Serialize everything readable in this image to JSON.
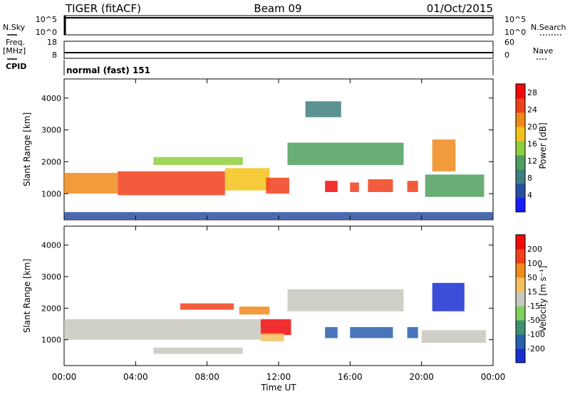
{
  "header": {
    "station": "TIGER (fitACF)",
    "beam": "Beam 09",
    "date": "01/Oct/2015"
  },
  "top_panels": {
    "nsky_label": "N.Sky",
    "nsearch_label": "N.Search",
    "sky_ticks": [
      "10^5",
      "10^0"
    ],
    "freq_label_1": "Freq.",
    "freq_label_2": "[MHz]",
    "freq_ticks": [
      "18",
      "8"
    ],
    "nave_label": "Nave",
    "nave_ticks": [
      "60",
      "0"
    ],
    "cpid_label": "CPID",
    "cpid_text": "normal (fast) 151"
  },
  "chart_data": [
    {
      "type": "heatmap",
      "title": "",
      "xlabel": "Time UT",
      "ylabel": "Slant Range [km]",
      "xlim": [
        0,
        24
      ],
      "ylim": [
        180,
        4600
      ],
      "x_ticks": [
        "00:00",
        "04:00",
        "08:00",
        "12:00",
        "16:00",
        "20:00",
        "00:00"
      ],
      "y_ticks": [
        "1000",
        "2000",
        "3000",
        "4000"
      ],
      "colorbar": {
        "label": "Power [dB]",
        "ticks": [
          "4",
          "8",
          "12",
          "16",
          "20",
          "24",
          "28"
        ],
        "range": [
          0,
          30
        ],
        "colors": [
          "#1a1aff",
          "#2a4fa0",
          "#3f7f7f",
          "#4f9f5f",
          "#8fcf3f",
          "#f5c21a",
          "#f08a1a",
          "#f0401a",
          "#f00a0a"
        ]
      },
      "regions": [
        {
          "t0": 0.0,
          "t1": 3.0,
          "r0": 1000,
          "r1": 1650,
          "value": 22
        },
        {
          "t0": 3.0,
          "t1": 9.0,
          "r0": 950,
          "r1": 1700,
          "value": 25
        },
        {
          "t0": 9.0,
          "t1": 11.5,
          "r0": 1100,
          "r1": 1800,
          "value": 18
        },
        {
          "t0": 11.3,
          "t1": 12.6,
          "r0": 1000,
          "r1": 1500,
          "value": 26
        },
        {
          "t0": 5.0,
          "t1": 10.0,
          "r0": 1900,
          "r1": 2150,
          "value": 16
        },
        {
          "t0": 14.6,
          "t1": 15.3,
          "r0": 1050,
          "r1": 1400,
          "value": 27
        },
        {
          "t0": 16.0,
          "t1": 16.5,
          "r0": 1050,
          "r1": 1350,
          "value": 24
        },
        {
          "t0": 17.0,
          "t1": 18.4,
          "r0": 1050,
          "r1": 1450,
          "value": 24
        },
        {
          "t0": 19.2,
          "t1": 19.8,
          "r0": 1050,
          "r1": 1400,
          "value": 24
        },
        {
          "t0": 20.6,
          "t1": 21.9,
          "r0": 1700,
          "r1": 2700,
          "value": 20
        },
        {
          "t0": 20.2,
          "t1": 23.5,
          "r0": 900,
          "r1": 1600,
          "value": 12
        },
        {
          "t0": 12.5,
          "t1": 19.0,
          "r0": 1900,
          "r1": 2600,
          "value": 10
        },
        {
          "t0": 13.5,
          "t1": 15.5,
          "r0": 3400,
          "r1": 3900,
          "value": 8
        },
        {
          "t0": 0.0,
          "t1": 24.0,
          "r0": 180,
          "r1": 420,
          "value": 6
        }
      ]
    },
    {
      "type": "heatmap",
      "title": "",
      "xlabel": "Time UT",
      "ylabel": "Slant Range [km]",
      "xlim": [
        0,
        24
      ],
      "ylim": [
        180,
        4600
      ],
      "x_ticks": [
        "00:00",
        "04:00",
        "08:00",
        "12:00",
        "16:00",
        "20:00",
        "00:00"
      ],
      "y_ticks": [
        "1000",
        "2000",
        "3000",
        "4000"
      ],
      "colorbar": {
        "label": "Velocity [m s⁻¹]",
        "ticks": [
          "200",
          "100",
          "50",
          "15",
          "-15",
          "-50",
          "-100",
          "-200"
        ],
        "range": [
          -250,
          250
        ],
        "colors": [
          "#1a2fd0",
          "#2a5fb0",
          "#3f8f6f",
          "#7fd05f",
          "#c8c8c0",
          "#f5c060",
          "#f08a1a",
          "#f0401a",
          "#f00a0a"
        ]
      },
      "regions": [
        {
          "t0": 0.0,
          "t1": 11.0,
          "r0": 1000,
          "r1": 1650,
          "value": 0
        },
        {
          "t0": 6.5,
          "t1": 9.5,
          "r0": 1950,
          "r1": 2150,
          "value": 180
        },
        {
          "t0": 9.8,
          "t1": 11.5,
          "r0": 1800,
          "r1": 2050,
          "value": 120
        },
        {
          "t0": 11.0,
          "t1": 12.7,
          "r0": 1150,
          "r1": 1650,
          "value": 200
        },
        {
          "t0": 11.0,
          "t1": 12.3,
          "r0": 950,
          "r1": 1200,
          "value": 40
        },
        {
          "t0": 14.6,
          "t1": 15.3,
          "r0": 1050,
          "r1": 1400,
          "value": -180
        },
        {
          "t0": 16.0,
          "t1": 18.4,
          "r0": 1050,
          "r1": 1400,
          "value": -150
        },
        {
          "t0": 19.2,
          "t1": 19.8,
          "r0": 1050,
          "r1": 1400,
          "value": -150
        },
        {
          "t0": 20.6,
          "t1": 22.4,
          "r0": 1900,
          "r1": 2800,
          "value": -220
        },
        {
          "t0": 12.5,
          "t1": 19.0,
          "r0": 1900,
          "r1": 2600,
          "value": 0
        },
        {
          "t0": 20.0,
          "t1": 23.6,
          "r0": 900,
          "r1": 1300,
          "value": 0
        },
        {
          "t0": 5.0,
          "t1": 10.0,
          "r0": 550,
          "r1": 750,
          "value": 0
        }
      ]
    }
  ]
}
